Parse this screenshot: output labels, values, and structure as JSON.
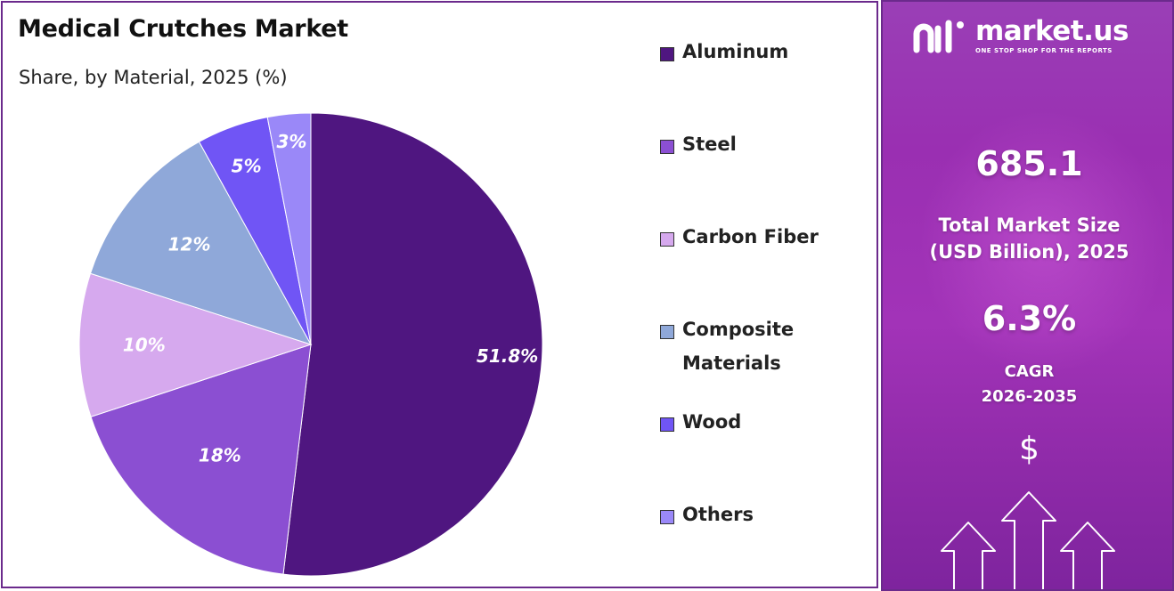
{
  "chart_data": {
    "type": "pie",
    "title": "Medical Crutches Market",
    "subtitle": "Share, by Material, 2025 (%)",
    "slices": [
      {
        "name": "Aluminum",
        "value": 51.8,
        "label": "51.8%",
        "color": "#4f1680"
      },
      {
        "name": "Steel",
        "value": 18,
        "label": "18%",
        "color": "#8b4fd2"
      },
      {
        "name": "Carbon Fiber",
        "value": 10,
        "label": "10%",
        "color": "#d6a9ee"
      },
      {
        "name": "Composite Materials",
        "value": 12,
        "label": "12%",
        "color": "#8fa8d9"
      },
      {
        "name": "Wood",
        "value": 5,
        "label": "5%",
        "color": "#7055f5"
      },
      {
        "name": "Others",
        "value": 3,
        "label": "3%",
        "color": "#9a88f8"
      }
    ],
    "legend_position": "right"
  },
  "side_panel": {
    "brand_name": "market.us",
    "brand_tagline": "ONE STOP SHOP FOR THE REPORTS",
    "market_size": "685.1",
    "market_size_label_line1": "Total Market Size",
    "market_size_label_line2": "(USD Billion), 2025",
    "cagr": "6.3%",
    "cagr_label_line1": "CAGR",
    "cagr_label_line2": "2026-2035",
    "currency_symbol": "$"
  }
}
